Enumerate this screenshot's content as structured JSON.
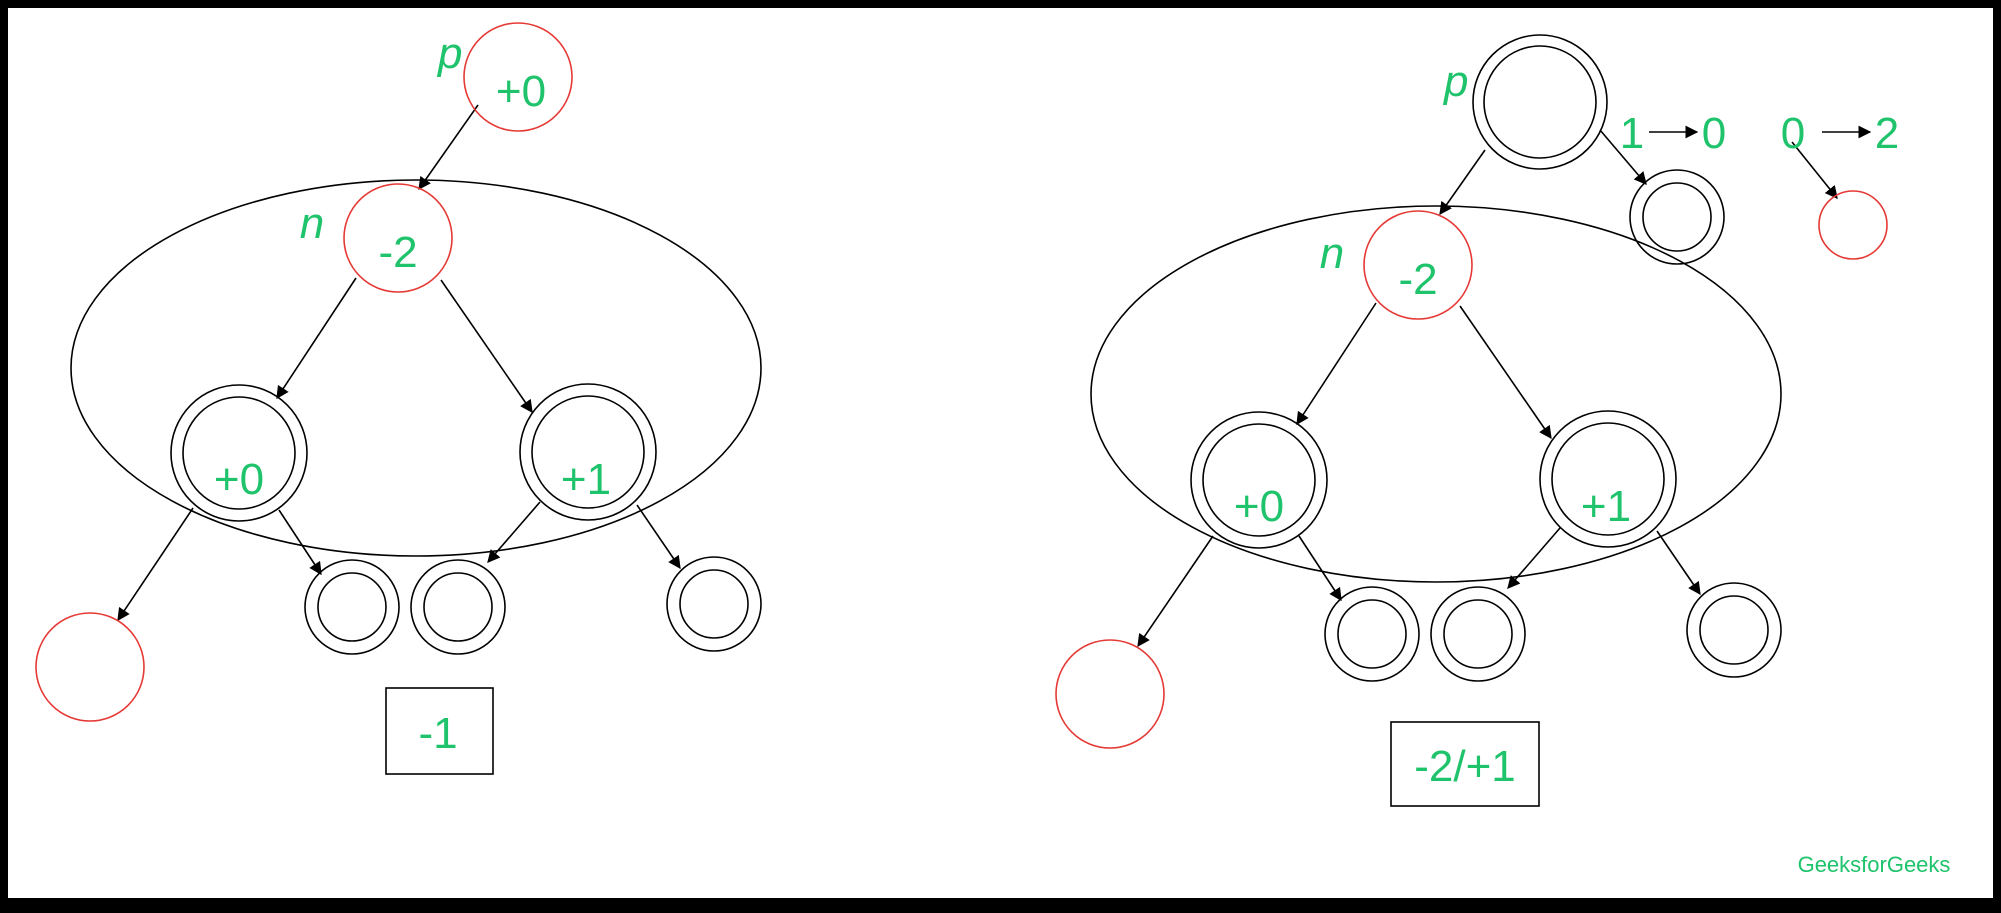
{
  "left_diagram": {
    "p_label": "p",
    "p_value": "+0",
    "n_label": "n",
    "n_value": "-2",
    "left_child_value": "+0",
    "right_child_value": "+1",
    "box_value": "-1"
  },
  "right_diagram": {
    "p_label": "p",
    "n_label": "n",
    "n_value": "-2",
    "left_child_value": "+0",
    "right_child_value": "+1",
    "transition_1": {
      "from": "1",
      "to": "0"
    },
    "transition_2": {
      "from": "0",
      "to": "2"
    },
    "box_value": "-2/+1"
  },
  "watermark": "GeeksforGeeks",
  "colors": {
    "label_green": "#1ec36b",
    "node_red": "#e53935",
    "stroke_black": "#000000",
    "background": "#ffffff",
    "frame": "#000000"
  }
}
